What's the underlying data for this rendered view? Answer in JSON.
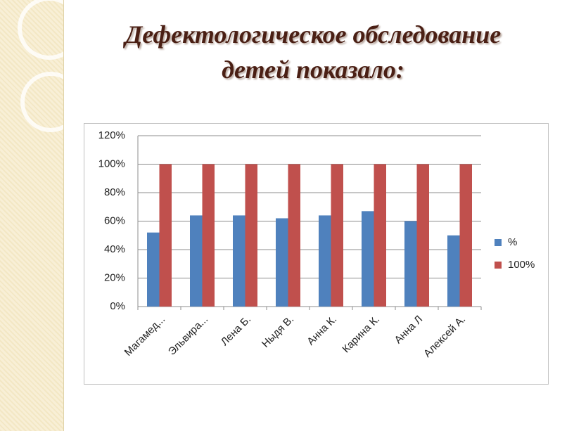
{
  "chart_data": {
    "type": "bar",
    "title": "Дефектологическое обследование\nдетей показало:",
    "categories": [
      "Магамед...",
      "Эльвира...",
      "Лена Б.",
      "Ныдя В.",
      "Анна К.",
      "Карина К.",
      "Анна Л",
      "Алексей А."
    ],
    "series": [
      {
        "name": "%",
        "color": "#4f81bd",
        "values": [
          52,
          64,
          64,
          62,
          64,
          67,
          60,
          50
        ]
      },
      {
        "name": "100%",
        "color": "#c0504d",
        "values": [
          100,
          100,
          100,
          100,
          100,
          100,
          100,
          100
        ]
      }
    ],
    "ylim": [
      0,
      120
    ],
    "yticks": [
      {
        "value": 0,
        "label": "0%"
      },
      {
        "value": 20,
        "label": "20%"
      },
      {
        "value": 40,
        "label": "40%"
      },
      {
        "value": 60,
        "label": "60%"
      },
      {
        "value": 80,
        "label": "80%"
      },
      {
        "value": 100,
        "label": "100%"
      },
      {
        "value": 120,
        "label": "120%"
      }
    ],
    "grid": true,
    "legend": "right"
  }
}
